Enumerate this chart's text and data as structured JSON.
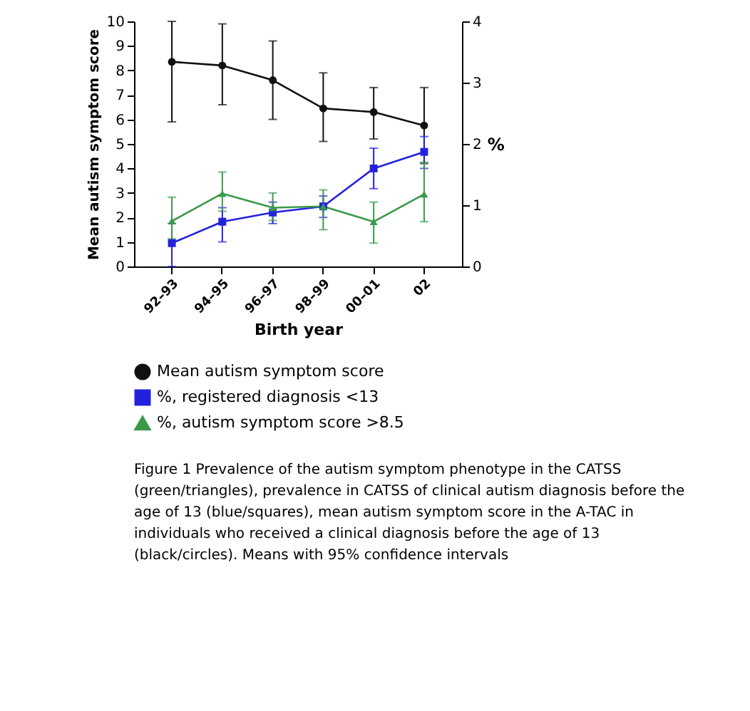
{
  "chart_data": {
    "type": "line",
    "xlabel": "Birth year",
    "ylabel": "Mean autism symptom score",
    "y2label": "%",
    "categories": [
      "92–93",
      "94–95",
      "96–97",
      "98–99",
      "00–01",
      "02"
    ],
    "series": [
      {
        "name": "Mean autism symptom score",
        "color": "#111111",
        "marker": "circle",
        "values": [
          8.35,
          8.2,
          7.6,
          6.45,
          6.3,
          5.75
        ],
        "errors": [
          [
            5.9,
            10.0
          ],
          [
            6.6,
            9.9
          ],
          [
            6.0,
            9.2
          ],
          [
            5.1,
            7.9
          ],
          [
            5.2,
            7.3
          ],
          [
            4.2,
            7.3
          ]
        ]
      },
      {
        "name": "%, registered diagnosis <13",
        "color": "#2222dd",
        "marker": "square",
        "axis": "y2",
        "values": [
          0.38,
          0.73,
          0.88,
          0.98,
          1.6,
          1.87
        ],
        "errors": [
          [
            0.0,
            0.7
          ],
          [
            0.4,
            0.96
          ],
          [
            0.7,
            1.05
          ],
          [
            0.8,
            1.15
          ],
          [
            1.27,
            1.93
          ],
          [
            1.6,
            2.12
          ]
        ]
      },
      {
        "name": "%, autism symptom score >8.5",
        "color": "#3a9a4a",
        "marker": "triangle",
        "axis": "y2",
        "values": [
          0.74,
          1.19,
          0.96,
          0.98,
          0.73,
          1.18
        ],
        "errors": [
          [
            0.45,
            1.13
          ],
          [
            0.9,
            1.54
          ],
          [
            0.75,
            1.2
          ],
          [
            0.6,
            1.25
          ],
          [
            0.38,
            1.05
          ],
          [
            0.73,
            1.7
          ]
        ]
      }
    ],
    "ylim": [
      0,
      10
    ],
    "yticks": [
      0,
      1,
      2,
      3,
      4,
      5,
      6,
      7,
      8,
      9,
      10
    ],
    "y2lim": [
      0,
      4
    ],
    "y2ticks": [
      0,
      1,
      2,
      3,
      4
    ],
    "grid": false,
    "legend": "bottom",
    "line_style": "solid",
    "annotations": [
      "Figure 1 Prevalence of the autism symptom phenotype in the CATSS (green/triangles), prevalence in CATSS of clinical autism diagnosis before the age of 13 (blue/squares), mean autism symptom score in the A-TAC in individuals who received a clinical diagnosis before the age of 13 (black/circles). Means with 95% confidence intervals"
    ]
  }
}
